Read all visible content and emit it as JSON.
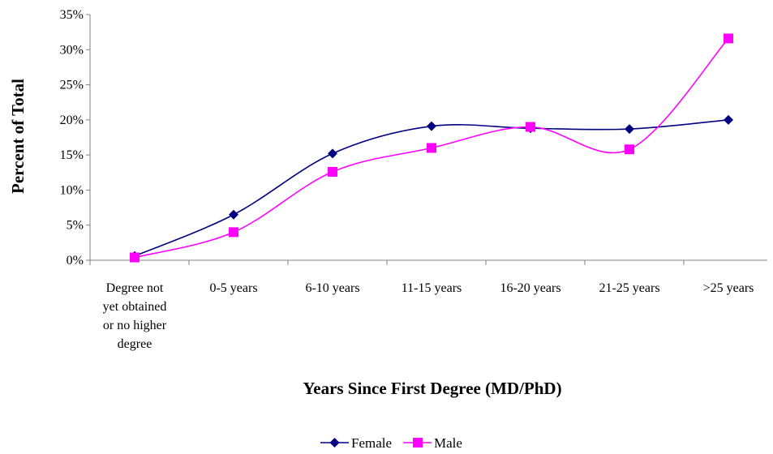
{
  "chart_data": {
    "type": "line",
    "title": "",
    "xlabel": "Years Since First Degree (MD/PhD)",
    "ylabel": "Percent of Total",
    "ylim": [
      0,
      35
    ],
    "y_ticks": [
      "0%",
      "5%",
      "10%",
      "15%",
      "20%",
      "25%",
      "30%",
      "35%"
    ],
    "y_tick_values": [
      0,
      5,
      10,
      15,
      20,
      25,
      30,
      35
    ],
    "categories": [
      "Degree not yet obtained or no higher degree",
      "0-5 years",
      "6-10 years",
      "11-15 years",
      "16-20 years",
      "21-25 years",
      ">25 years"
    ],
    "category_label_lines": [
      [
        "Degree not",
        "yet obtained",
        "or no higher",
        "degree"
      ],
      [
        "0-5 years"
      ],
      [
        "6-10 years"
      ],
      [
        "11-15 years"
      ],
      [
        "16-20 years"
      ],
      [
        "21-25 years"
      ],
      [
        ">25 years"
      ]
    ],
    "series": [
      {
        "name": "Female",
        "values": [
          0.6,
          6.5,
          15.2,
          19.1,
          18.8,
          18.7,
          20.0
        ],
        "color": "#000080",
        "marker": "diamond"
      },
      {
        "name": "Male",
        "values": [
          0.4,
          4.0,
          12.6,
          16.0,
          19.0,
          15.8,
          31.6
        ],
        "color": "#FF00FF",
        "marker": "square"
      }
    ],
    "legend_position": "bottom",
    "smooth": true,
    "grid": false
  }
}
